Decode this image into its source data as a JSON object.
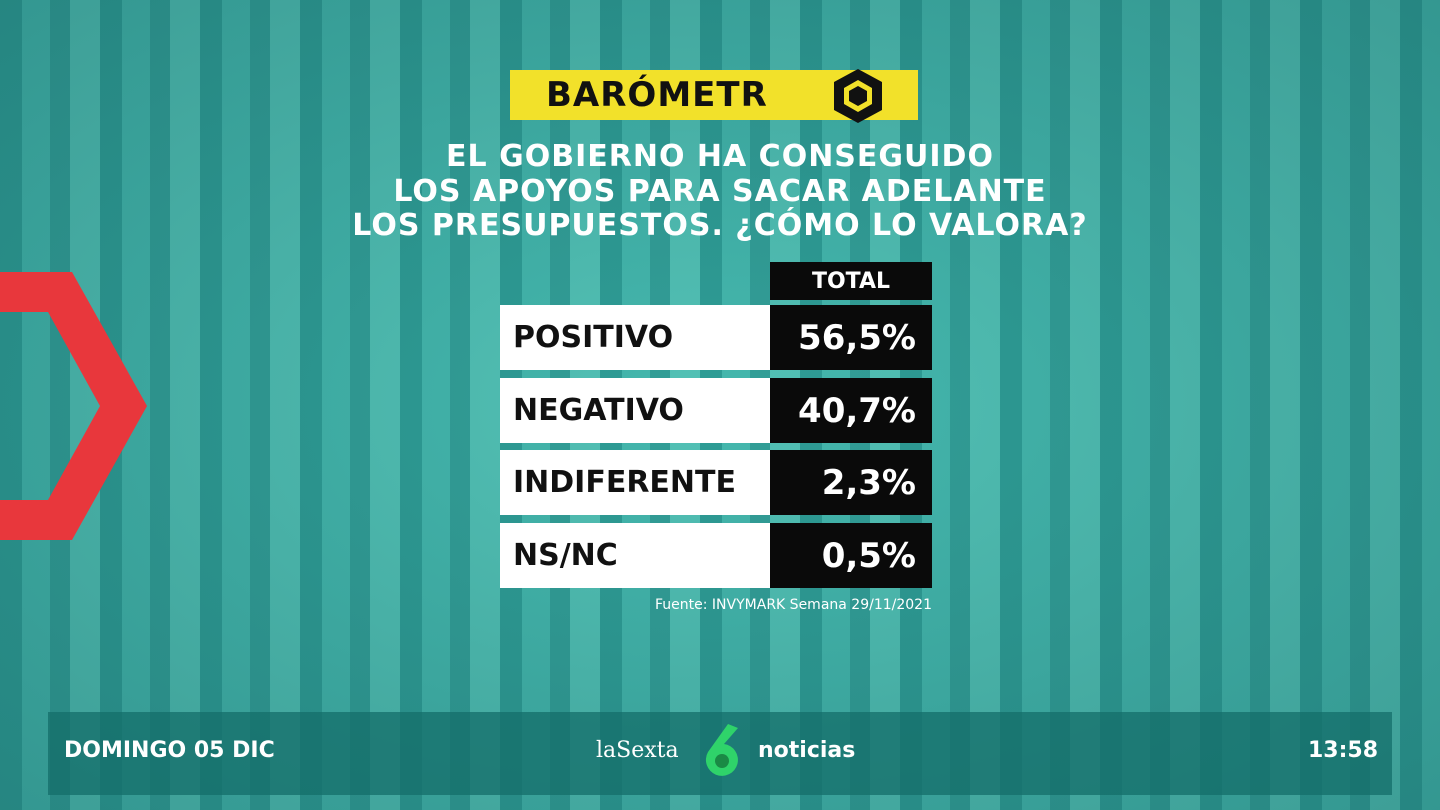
{
  "header": {
    "title": "BARÓMETR"
  },
  "question": {
    "lines": [
      "EL GOBIERNO HA CONSEGUIDO",
      "LOS APOYOS PARA SACAR ADELANTE",
      "LOS PRESUPUESTOS. ¿CÓMO LO VALORA?"
    ]
  },
  "table": {
    "column_header": "TOTAL",
    "rows": [
      [
        "POSITIVO",
        "56,5%"
      ],
      [
        "NEGATIVO",
        "40,7%"
      ],
      [
        "INDIFERENTE",
        "2,3%"
      ],
      [
        "NS/NC",
        "0,5%"
      ]
    ]
  },
  "source": "Fuente: INVYMARK Semana 29/11/2021",
  "footer": {
    "date": "DOMINGO 05 DIC",
    "channel": "laSexta",
    "program": "noticias",
    "time": "13:58"
  }
}
